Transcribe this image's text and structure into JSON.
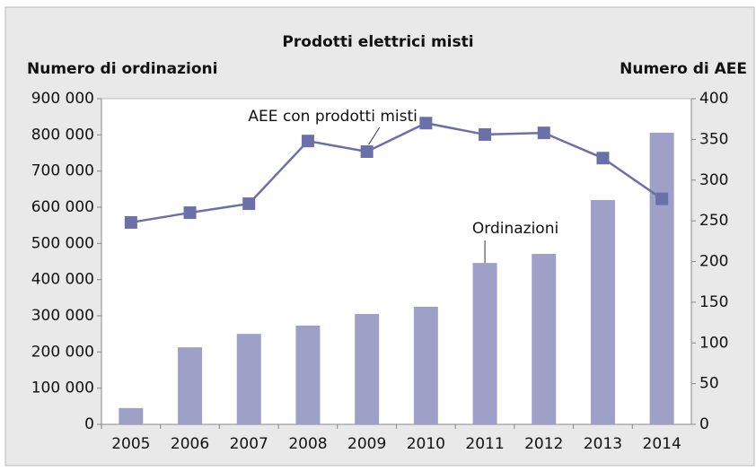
{
  "chart_data": {
    "type": "bar",
    "title": "Prodotti elettrici misti",
    "y_label": "Numero di ordinazioni",
    "y2_label": "Numero di AEE",
    "categories": [
      "2005",
      "2006",
      "2007",
      "2008",
      "2009",
      "2010",
      "2011",
      "2012",
      "2013",
      "2014"
    ],
    "series": [
      {
        "name": "Ordinazioni",
        "type": "bar",
        "axis": "y",
        "color": "#9fa0c8",
        "values": [
          45000,
          213000,
          250000,
          273000,
          305000,
          325000,
          446000,
          471000,
          620000,
          806000
        ]
      },
      {
        "name": "AEE con prodotti misti",
        "type": "line",
        "axis": "y2",
        "color": "#6b70a8",
        "values": [
          248,
          260,
          271,
          348,
          335,
          370,
          356,
          358,
          327,
          277
        ]
      }
    ],
    "ylim": [
      0,
      900000
    ],
    "yticks": [
      0,
      {
        "value": 100000,
        "label": "100 000"
      },
      {
        "value": 200000,
        "label": "200 000"
      },
      {
        "value": 300000,
        "label": "300 000"
      },
      {
        "value": 400000,
        "label": "400 000"
      },
      {
        "value": 500000,
        "label": "500 000"
      },
      {
        "value": 600000,
        "label": "600 000"
      },
      {
        "value": 700000,
        "label": "700 000"
      },
      {
        "value": 800000,
        "label": "800 000"
      },
      {
        "value": 900000,
        "label": "900 000"
      }
    ],
    "y2lim": [
      0,
      400
    ],
    "y2ticks": [
      0,
      50,
      100,
      150,
      200,
      250,
      300,
      350,
      400
    ]
  }
}
